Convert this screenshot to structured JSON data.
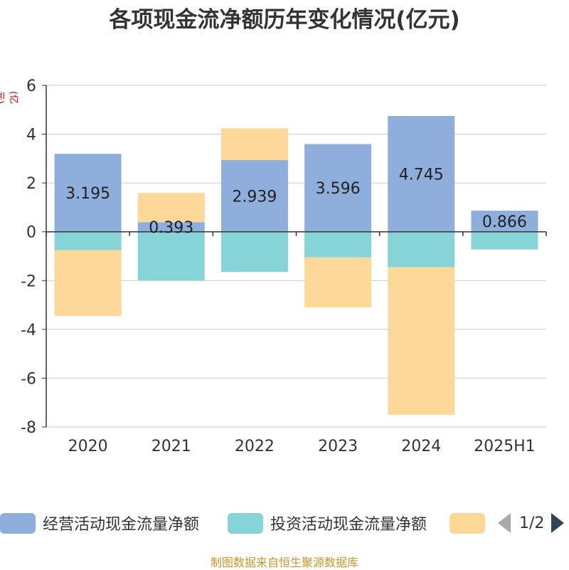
{
  "title": "各项现金流净额历年变化情况(亿元)",
  "source": "制图数据来自恒生聚源数据库",
  "colors": {
    "title": "#333333",
    "axis_label": "#cc0000",
    "source": "#c8962a",
    "series": [
      "#8eaedb",
      "#86d4d8",
      "#fdd898"
    ]
  },
  "legend": {
    "items": [
      {
        "label": "经营活动现金流量净额"
      },
      {
        "label": "投资活动现金流量净额"
      },
      {
        "label": ""
      }
    ],
    "page_text": "1/2",
    "prev_icon": "triangle-left-icon",
    "next_icon": "triangle-right-icon"
  },
  "chart_data": {
    "type": "bar",
    "stacked": true,
    "ylabel": "(亿元)",
    "ylim": [
      -8,
      6
    ],
    "yticks": [
      6,
      4,
      2,
      0,
      -2,
      -4,
      -6,
      -8
    ],
    "grid": true,
    "legend_position": "bottom",
    "categories": [
      "2020",
      "2021",
      "2022",
      "2023",
      "2024",
      "2025H1"
    ],
    "series": [
      {
        "name": "经营活动现金流量净额",
        "values": [
          3.195,
          0.393,
          2.939,
          3.596,
          4.745,
          0.866
        ],
        "labels": [
          "3.195",
          "0.393",
          "2.939",
          "3.596",
          "4.745",
          "0.866"
        ]
      },
      {
        "name": "投资活动现金流量净额",
        "values": [
          -0.75,
          -2.0,
          -1.65,
          -1.05,
          -1.45,
          -0.72
        ],
        "labels": []
      },
      {
        "values": [
          -2.7,
          1.2,
          1.3,
          -2.05,
          -6.05,
          -0.02
        ],
        "labels": []
      }
    ]
  }
}
